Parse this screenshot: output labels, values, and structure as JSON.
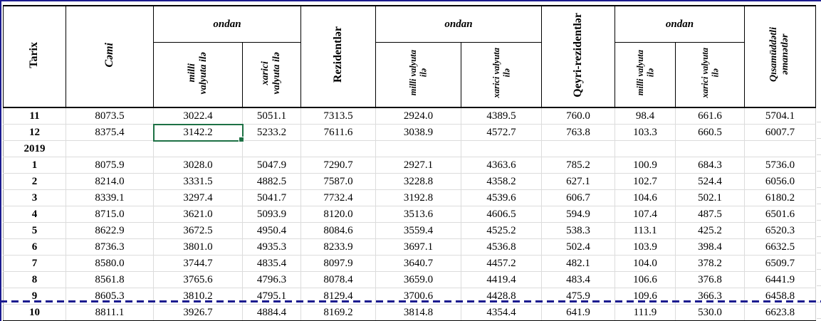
{
  "table": {
    "columns": {
      "tarix": "Tarix",
      "cami": "Cəmi",
      "ondan": "ondan",
      "rezidentlar": "Rezidentlər",
      "qeyri_rezidentlar": "Qeyri-rezidentlər",
      "qisamuddatli": "Qısamüddətli\nəmanətlər",
      "sub1_milli": "milli\nvalyuta ilə",
      "sub1_xarici": "xarici\nvalyuta ilə",
      "sub2_milli": "milli valyuta\nilə",
      "sub2_xarici": "xarici valyuta\nilə"
    },
    "rows": [
      {
        "tarix": "11",
        "values": [
          "8073.5",
          "3022.4",
          "5051.1",
          "7313.5",
          "2924.0",
          "4389.5",
          "760.0",
          "98.4",
          "661.6",
          "5704.1"
        ]
      },
      {
        "tarix": "12",
        "values": [
          "8375.4",
          "3142.2",
          "5233.2",
          "7611.6",
          "3038.9",
          "4572.7",
          "763.8",
          "103.3",
          "660.5",
          "6007.7"
        ]
      },
      {
        "tarix": "2019",
        "values": [
          "",
          "",
          "",
          "",
          "",
          "",
          "",
          "",
          "",
          ""
        ]
      },
      {
        "tarix": "1",
        "values": [
          "8075.9",
          "3028.0",
          "5047.9",
          "7290.7",
          "2927.1",
          "4363.6",
          "785.2",
          "100.9",
          "684.3",
          "5736.0"
        ]
      },
      {
        "tarix": "2",
        "values": [
          "8214.0",
          "3331.5",
          "4882.5",
          "7587.0",
          "3228.8",
          "4358.2",
          "627.1",
          "102.7",
          "524.4",
          "6056.0"
        ]
      },
      {
        "tarix": "3",
        "values": [
          "8339.1",
          "3297.4",
          "5041.7",
          "7732.4",
          "3192.8",
          "4539.6",
          "606.7",
          "104.6",
          "502.1",
          "6180.2"
        ]
      },
      {
        "tarix": "4",
        "values": [
          "8715.0",
          "3621.0",
          "5093.9",
          "8120.0",
          "3513.6",
          "4606.5",
          "594.9",
          "107.4",
          "487.5",
          "6501.6"
        ]
      },
      {
        "tarix": "5",
        "values": [
          "8622.9",
          "3672.5",
          "4950.4",
          "8084.6",
          "3559.4",
          "4525.2",
          "538.3",
          "113.1",
          "425.2",
          "6520.3"
        ]
      },
      {
        "tarix": "6",
        "values": [
          "8736.3",
          "3801.0",
          "4935.3",
          "8233.9",
          "3697.1",
          "4536.8",
          "502.4",
          "103.9",
          "398.4",
          "6632.5"
        ]
      },
      {
        "tarix": "7",
        "values": [
          "8580.0",
          "3744.7",
          "4835.4",
          "8097.9",
          "3640.7",
          "4457.2",
          "482.1",
          "104.0",
          "378.2",
          "6509.7"
        ]
      },
      {
        "tarix": "8",
        "values": [
          "8561.8",
          "3765.6",
          "4796.3",
          "8078.4",
          "3659.0",
          "4419.4",
          "483.4",
          "106.6",
          "376.8",
          "6441.9"
        ]
      },
      {
        "tarix": "9",
        "values": [
          "8605.3",
          "3810.2",
          "4795.1",
          "8129.4",
          "3700.6",
          "4428.8",
          "475.9",
          "109.6",
          "366.3",
          "6458.8"
        ]
      },
      {
        "tarix": "10",
        "values": [
          "8811.1",
          "3926.7",
          "4884.4",
          "8169.2",
          "3814.8",
          "4354.4",
          "641.9",
          "111.9",
          "530.0",
          "6623.8"
        ]
      }
    ],
    "selection": {
      "row_index": 1,
      "col_index": 1,
      "value": "3142.2"
    }
  },
  "colors": {
    "page_break_navy": "#1b1b8f",
    "selection_green": "#1e7145",
    "gridline_gray": "#d9d9d9",
    "border_black": "#000000"
  }
}
